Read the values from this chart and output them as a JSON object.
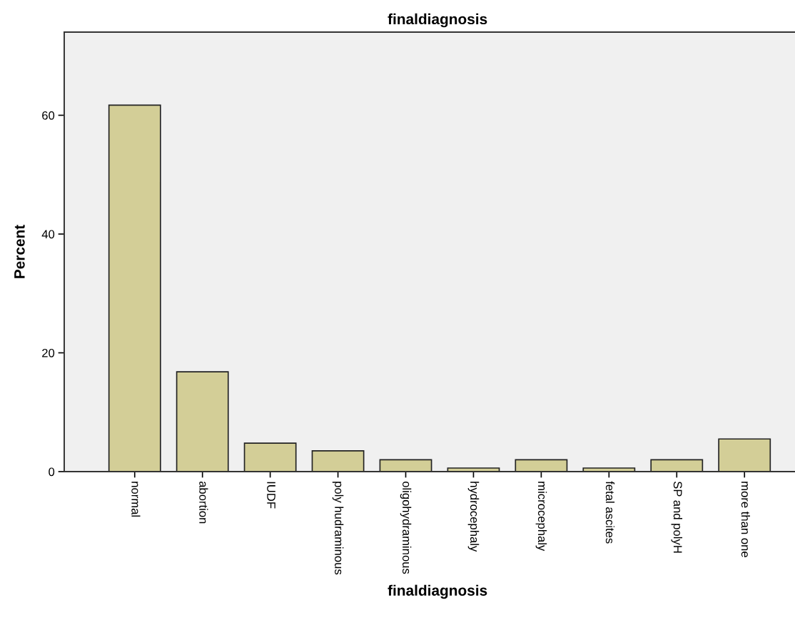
{
  "chart_data": {
    "type": "bar",
    "title": "finaldiagnosis",
    "xlabel": "finaldiagnosis",
    "ylabel": "Percent",
    "categories": [
      "normal",
      "abortion",
      "IUDF",
      "poly hudraminous",
      "oligohydraminous",
      "hydrocephaly",
      "microcephaly",
      "fetal ascites",
      "SP and polyH",
      "more than one"
    ],
    "values": [
      61.7,
      16.8,
      4.8,
      3.5,
      2.0,
      0.6,
      2.0,
      0.6,
      2.0,
      5.5
    ],
    "color": "#d3ce97",
    "ylim": [
      0,
      74
    ],
    "yticks": [
      0,
      20,
      40,
      60
    ],
    "grid": false
  }
}
